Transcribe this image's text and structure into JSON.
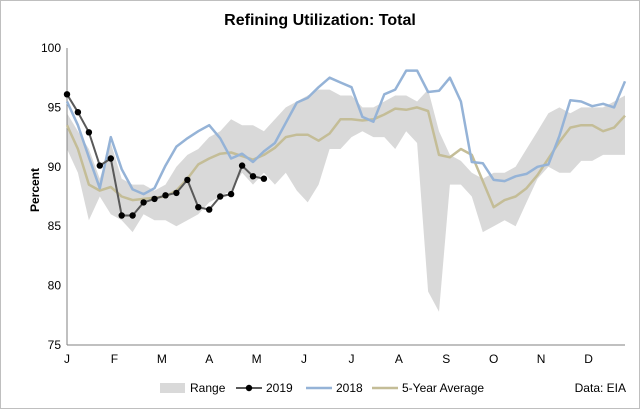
{
  "chart_data": {
    "type": "line",
    "title": "Refining Utilization: Total",
    "ylabel": "Percent",
    "xlabel": "",
    "ylim": [
      75,
      100
    ],
    "yticks": [
      75,
      80,
      85,
      90,
      95,
      100
    ],
    "x_ticks": [
      "J",
      "F",
      "M",
      "A",
      "M",
      "J",
      "J",
      "A",
      "S",
      "O",
      "N",
      "D"
    ],
    "x_unit": "week of year (1-52)",
    "grid": false,
    "legend_position": "bottom",
    "source": "Data: EIA",
    "legend": [
      "Range",
      "2019",
      "2018",
      "5-Year Average"
    ],
    "colors": {
      "range": "#d9d9d9",
      "y2019": "#595959",
      "y2018": "#95b3d7",
      "avg": "#c4bd97"
    },
    "range": {
      "x": [
        1,
        2,
        3,
        4,
        5,
        6,
        7,
        8,
        9,
        10,
        11,
        12,
        13,
        14,
        15,
        16,
        17,
        18,
        19,
        20,
        21,
        22,
        23,
        24,
        25,
        26,
        27,
        28,
        29,
        30,
        31,
        32,
        33,
        34,
        35,
        36,
        37,
        38,
        39,
        40,
        41,
        42,
        43,
        44,
        45,
        46,
        47,
        48,
        49,
        50,
        51,
        52
      ],
      "low": [
        91.5,
        89.5,
        85.5,
        87.5,
        86,
        85.5,
        84.5,
        86,
        85.5,
        85.5,
        85,
        85.5,
        86,
        87,
        87.5,
        88,
        89.5,
        88.5,
        89.5,
        88.5,
        89.5,
        88,
        87,
        88.5,
        91.5,
        91.5,
        92.5,
        93,
        92.5,
        92.5,
        91.5,
        93,
        92,
        79.5,
        77.8,
        88.5,
        88.5,
        87.5,
        84.5,
        85,
        85.5,
        85,
        87,
        89,
        90,
        89.5,
        89.5,
        90.5,
        90.5,
        91,
        91,
        91
      ],
      "high": [
        94.5,
        93,
        91.5,
        89,
        92,
        89,
        88.5,
        88.5,
        88,
        88.5,
        90,
        91,
        91.5,
        92.5,
        93,
        94,
        93.5,
        93.5,
        93,
        94,
        95,
        95.5,
        96,
        96.5,
        96.5,
        96,
        96,
        95,
        95,
        95.5,
        96,
        96,
        95.5,
        96.5,
        93,
        91,
        90.5,
        89.5,
        89,
        89.5,
        89.5,
        90,
        91.5,
        93,
        94.5,
        95,
        94.5,
        95,
        95,
        95,
        95.5,
        96
      ]
    },
    "series": [
      {
        "name": "2019",
        "x": [
          1,
          2,
          3,
          4,
          5,
          6,
          7,
          8,
          9,
          10,
          11,
          12,
          13,
          14,
          15,
          16,
          17,
          18,
          19
        ],
        "values": [
          96.1,
          94.6,
          92.9,
          90.1,
          90.7,
          85.9,
          85.9,
          87.0,
          87.3,
          87.6,
          87.8,
          88.9,
          86.6,
          86.4,
          87.5,
          87.7,
          90.1,
          89.2,
          89.0
        ]
      },
      {
        "name": "2018",
        "x": [
          1,
          2,
          3,
          4,
          5,
          6,
          7,
          8,
          9,
          10,
          11,
          12,
          13,
          14,
          15,
          16,
          17,
          18,
          19,
          20,
          21,
          22,
          23,
          24,
          25,
          26,
          27,
          28,
          29,
          30,
          31,
          32,
          33,
          34,
          35,
          36,
          37,
          38,
          39,
          40,
          41,
          42,
          43,
          44,
          45,
          46,
          47,
          48,
          49,
          50,
          51,
          52
        ],
        "values": [
          95.5,
          93.5,
          90.8,
          88.2,
          92.5,
          89.8,
          88.1,
          87.7,
          88.2,
          90.1,
          91.7,
          92.4,
          93.0,
          93.5,
          92.4,
          90.7,
          91.1,
          90.4,
          91.3,
          92.0,
          93.7,
          95.4,
          95.8,
          96.7,
          97.5,
          97.1,
          96.7,
          94.2,
          93.8,
          96.1,
          96.5,
          98.1,
          98.1,
          96.3,
          96.4,
          97.5,
          95.5,
          90.4,
          90.3,
          88.9,
          88.8,
          89.2,
          89.4,
          90.0,
          90.2,
          92.6,
          95.6,
          95.5,
          95.1,
          95.3,
          95.0,
          97.2
        ]
      },
      {
        "name": "5-Year Average",
        "x": [
          1,
          2,
          3,
          4,
          5,
          6,
          7,
          8,
          9,
          10,
          11,
          12,
          13,
          14,
          15,
          16,
          17,
          18,
          19,
          20,
          21,
          22,
          23,
          24,
          25,
          26,
          27,
          28,
          29,
          30,
          31,
          32,
          33,
          34,
          35,
          36,
          37,
          38,
          39,
          40,
          41,
          42,
          43,
          44,
          45,
          46,
          47,
          48,
          49,
          50,
          51,
          52
        ],
        "values": [
          93.5,
          91.5,
          88.5,
          88.0,
          88.3,
          87.5,
          87.2,
          87.3,
          87.4,
          87.5,
          88.0,
          89.0,
          90.2,
          90.7,
          91.1,
          91.2,
          90.9,
          90.6,
          91.0,
          91.6,
          92.5,
          92.7,
          92.7,
          92.2,
          92.8,
          94.0,
          94.0,
          93.9,
          94.0,
          94.4,
          94.9,
          94.8,
          95.0,
          94.7,
          91.0,
          90.8,
          91.5,
          91.0,
          88.8,
          86.6,
          87.2,
          87.5,
          88.2,
          89.3,
          90.7,
          92.1,
          93.3,
          93.5,
          93.5,
          93.0,
          93.3,
          94.3
        ]
      }
    ]
  }
}
